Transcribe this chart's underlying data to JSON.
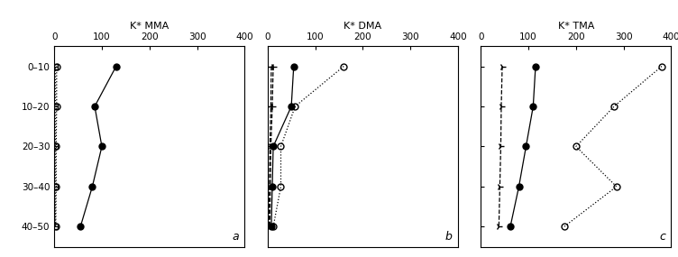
{
  "subplots": [
    {
      "label": "a",
      "title": "K* MMA",
      "xlim": [
        0,
        400
      ],
      "xticks": [
        0,
        100,
        200,
        300,
        400
      ],
      "series": [
        {
          "name": "filled_circle",
          "marker": "o",
          "fillstyle": "full",
          "linestyle": "-",
          "color": "black",
          "markersize": 5,
          "y_depths": [
            5,
            15,
            25,
            35,
            45
          ],
          "x_vals": [
            130,
            85,
            100,
            80,
            55
          ]
        },
        {
          "name": "open_circle",
          "marker": "o",
          "fillstyle": "none",
          "linestyle": ":",
          "color": "black",
          "markersize": 5,
          "y_depths": [
            5,
            15,
            25,
            35,
            45
          ],
          "x_vals": [
            5,
            5,
            4,
            4,
            3
          ]
        },
        {
          "name": "open_square",
          "marker": "s",
          "fillstyle": "none",
          "linestyle": ":",
          "color": "black",
          "markersize": 4,
          "y_depths": [
            5,
            15,
            25,
            35,
            45
          ],
          "x_vals": [
            2,
            2,
            2,
            2,
            2
          ]
        }
      ]
    },
    {
      "label": "b",
      "title": "K* DMA",
      "xlim": [
        0,
        400
      ],
      "xticks": [
        0,
        100,
        200,
        300,
        400
      ],
      "series": [
        {
          "name": "filled_circle",
          "marker": "o",
          "fillstyle": "full",
          "linestyle": "-",
          "color": "black",
          "markersize": 5,
          "y_depths": [
            5,
            15,
            25,
            35,
            45
          ],
          "x_vals": [
            55,
            50,
            12,
            10,
            8
          ]
        },
        {
          "name": "open_circle",
          "marker": "o",
          "fillstyle": "none",
          "linestyle": ":",
          "color": "black",
          "markersize": 5,
          "y_depths": [
            5,
            15,
            25,
            35,
            45
          ],
          "x_vals": [
            160,
            58,
            28,
            28,
            12
          ]
        },
        {
          "name": "triangle_left_open",
          "marker": "4",
          "fillstyle": "none",
          "linestyle": "--",
          "color": "black",
          "markersize": 6,
          "y_depths": [
            5,
            15,
            25,
            35,
            45
          ],
          "x_vals": [
            12,
            10,
            7,
            6,
            5
          ]
        },
        {
          "name": "triangle_left_filled",
          "marker": "3",
          "fillstyle": "full",
          "linestyle": "--",
          "color": "black",
          "markersize": 6,
          "y_depths": [
            5,
            15,
            25,
            35,
            45
          ],
          "x_vals": [
            8,
            7,
            5,
            4,
            3
          ]
        }
      ]
    },
    {
      "label": "c",
      "title": "K* TMA",
      "xlim": [
        0,
        400
      ],
      "xticks": [
        0,
        100,
        200,
        300,
        400
      ],
      "series": [
        {
          "name": "filled_circle",
          "marker": "o",
          "fillstyle": "full",
          "linestyle": "-",
          "color": "black",
          "markersize": 5,
          "y_depths": [
            5,
            15,
            25,
            35,
            45
          ],
          "x_vals": [
            115,
            110,
            95,
            80,
            62
          ]
        },
        {
          "name": "open_circle",
          "marker": "o",
          "fillstyle": "none",
          "linestyle": ":",
          "color": "black",
          "markersize": 5,
          "y_depths": [
            5,
            15,
            25,
            35,
            45
          ],
          "x_vals": [
            380,
            280,
            200,
            285,
            175
          ]
        },
        {
          "name": "triangle_open",
          "marker": "4",
          "fillstyle": "none",
          "linestyle": "--",
          "color": "black",
          "markersize": 6,
          "y_depths": [
            5,
            15,
            25,
            35,
            45
          ],
          "x_vals": [
            45,
            43,
            42,
            40,
            38
          ]
        }
      ]
    }
  ],
  "ylim": [
    50,
    0
  ],
  "ytick_positions": [
    5,
    15,
    25,
    35,
    45
  ],
  "ytick_labels": [
    "0–10",
    "10–20",
    "20–30",
    "30–40",
    "40–50"
  ],
  "background_color": "#ffffff",
  "figure_width": 7.52,
  "figure_height": 2.85,
  "dpi": 100
}
